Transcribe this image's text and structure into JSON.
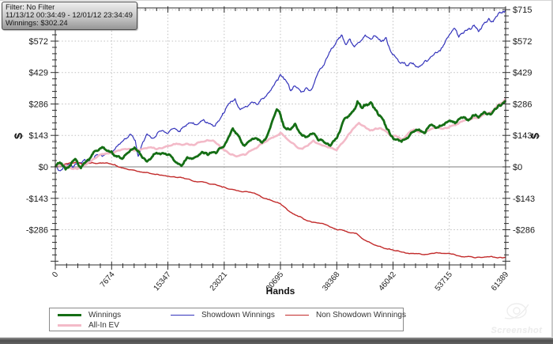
{
  "tooltip": {
    "filter": "Filter: No Filter",
    "date_range": "11/13/12 00:34:49 - 12/01/12 23:34:49",
    "winnings": "Winnings: $302.24"
  },
  "watermark": {
    "text": "Screenshot"
  },
  "chart_data": {
    "type": "line",
    "title": "",
    "xlabel": "Hands",
    "ylabel": "$",
    "xlim": [
      0,
      61389
    ],
    "ylim": [
      -446,
      723
    ],
    "x_ticks": [
      0,
      7674,
      15347,
      23021,
      30695,
      38368,
      46042,
      53715,
      61389
    ],
    "y_ticks": [
      -286,
      -143,
      0,
      143,
      286,
      429,
      572,
      715
    ],
    "grid": "dotted",
    "legend_position": "bottom",
    "series": [
      {
        "name": "Showdown Winnings",
        "color": "#3434bb",
        "width": 1.2,
        "noise": 9,
        "legend_slot": 2,
        "points": [
          [
            0,
            0
          ],
          [
            800,
            -14
          ],
          [
            1600,
            10
          ],
          [
            2400,
            -4
          ],
          [
            3200,
            16
          ],
          [
            4000,
            34
          ],
          [
            4800,
            28
          ],
          [
            5600,
            54
          ],
          [
            6400,
            48
          ],
          [
            7674,
            74
          ],
          [
            8500,
            95
          ],
          [
            9300,
            120
          ],
          [
            10100,
            145
          ],
          [
            10900,
            120
          ],
          [
            11300,
            48
          ],
          [
            11900,
            110
          ],
          [
            12500,
            150
          ],
          [
            13300,
            130
          ],
          [
            14100,
            160
          ],
          [
            15347,
            152
          ],
          [
            16200,
            175
          ],
          [
            17000,
            160
          ],
          [
            17800,
            185
          ],
          [
            18600,
            200
          ],
          [
            19400,
            194
          ],
          [
            20200,
            215
          ],
          [
            21000,
            196
          ],
          [
            21800,
            186
          ],
          [
            22600,
            226
          ],
          [
            23021,
            246
          ],
          [
            23800,
            290
          ],
          [
            24500,
            310
          ],
          [
            25200,
            260
          ],
          [
            26000,
            275
          ],
          [
            26800,
            295
          ],
          [
            27600,
            284
          ],
          [
            28400,
            310
          ],
          [
            29200,
            340
          ],
          [
            30000,
            386
          ],
          [
            30695,
            420
          ],
          [
            31400,
            394
          ],
          [
            32100,
            346
          ],
          [
            32800,
            364
          ],
          [
            33500,
            340
          ],
          [
            34200,
            360
          ],
          [
            34900,
            350
          ],
          [
            35600,
            410
          ],
          [
            36300,
            450
          ],
          [
            37000,
            494
          ],
          [
            37700,
            540
          ],
          [
            38368,
            574
          ],
          [
            39000,
            600
          ],
          [
            39600,
            556
          ],
          [
            40200,
            580
          ],
          [
            40800,
            546
          ],
          [
            41500,
            566
          ],
          [
            42250,
            600
          ],
          [
            43000,
            580
          ],
          [
            43700,
            594
          ],
          [
            44400,
            570
          ],
          [
            45100,
            588
          ],
          [
            45800,
            520
          ],
          [
            46500,
            494
          ],
          [
            47200,
            474
          ],
          [
            47900,
            460
          ],
          [
            48600,
            470
          ],
          [
            49300,
            455
          ],
          [
            50000,
            464
          ],
          [
            50700,
            480
          ],
          [
            51400,
            504
          ],
          [
            52100,
            520
          ],
          [
            52800,
            544
          ],
          [
            53715,
            600
          ],
          [
            54400,
            630
          ],
          [
            55000,
            590
          ],
          [
            55700,
            610
          ],
          [
            56400,
            630
          ],
          [
            57100,
            645
          ],
          [
            57700,
            615
          ],
          [
            58400,
            650
          ],
          [
            59100,
            675
          ],
          [
            59700,
            660
          ],
          [
            60300,
            690
          ],
          [
            60900,
            700
          ],
          [
            61389,
            715
          ]
        ]
      },
      {
        "name": "Non Showdown Winnings",
        "color": "#c22b2b",
        "width": 1.4,
        "noise": 4,
        "legend_slot": 3,
        "points": [
          [
            0,
            0
          ],
          [
            1000,
            8
          ],
          [
            2000,
            18
          ],
          [
            3000,
            22
          ],
          [
            4000,
            14
          ],
          [
            5000,
            20
          ],
          [
            6500,
            18
          ],
          [
            7674,
            12
          ],
          [
            8500,
            2
          ],
          [
            9500,
            -8
          ],
          [
            11000,
            -18
          ],
          [
            12500,
            -25
          ],
          [
            14000,
            -34
          ],
          [
            15347,
            -42
          ],
          [
            16500,
            -48
          ],
          [
            18000,
            -55
          ],
          [
            19500,
            -68
          ],
          [
            21000,
            -78
          ],
          [
            22500,
            -88
          ],
          [
            23021,
            -92
          ],
          [
            24500,
            -105
          ],
          [
            26000,
            -112
          ],
          [
            27500,
            -125
          ],
          [
            29000,
            -148
          ],
          [
            30695,
            -168
          ],
          [
            32000,
            -205
          ],
          [
            33500,
            -228
          ],
          [
            35000,
            -252
          ],
          [
            36500,
            -258
          ],
          [
            38368,
            -286
          ],
          [
            39500,
            -292
          ],
          [
            41000,
            -302
          ],
          [
            42000,
            -330
          ],
          [
            43500,
            -355
          ],
          [
            45000,
            -372
          ],
          [
            46042,
            -378
          ],
          [
            47500,
            -388
          ],
          [
            49000,
            -395
          ],
          [
            50500,
            -398
          ],
          [
            52000,
            -390
          ],
          [
            53715,
            -393
          ],
          [
            55000,
            -405
          ],
          [
            56500,
            -408
          ],
          [
            58000,
            -412
          ],
          [
            59500,
            -407
          ],
          [
            60500,
            -412
          ],
          [
            61389,
            -410
          ]
        ]
      },
      {
        "name": "All-In EV",
        "color": "#f3bac8",
        "width": 2.6,
        "noise": 7,
        "legend_slot": 4,
        "points": [
          [
            0,
            0
          ],
          [
            1500,
            6
          ],
          [
            3000,
            -10
          ],
          [
            4500,
            20
          ],
          [
            6000,
            54
          ],
          [
            7674,
            64
          ],
          [
            9200,
            80
          ],
          [
            10700,
            74
          ],
          [
            12300,
            85
          ],
          [
            13800,
            80
          ],
          [
            15347,
            94
          ],
          [
            16900,
            104
          ],
          [
            18400,
            100
          ],
          [
            19900,
            114
          ],
          [
            21500,
            120
          ],
          [
            23021,
            76
          ],
          [
            24500,
            50
          ],
          [
            26000,
            56
          ],
          [
            27600,
            90
          ],
          [
            29100,
            125
          ],
          [
            30695,
            155
          ],
          [
            32200,
            110
          ],
          [
            33700,
            82
          ],
          [
            35200,
            120
          ],
          [
            36800,
            95
          ],
          [
            38368,
            76
          ],
          [
            39900,
            145
          ],
          [
            41400,
            200
          ],
          [
            42900,
            165
          ],
          [
            44400,
            175
          ],
          [
            45900,
            140
          ],
          [
            47400,
            126
          ],
          [
            48900,
            170
          ],
          [
            50400,
            155
          ],
          [
            51900,
            180
          ],
          [
            53400,
            176
          ],
          [
            54900,
            195
          ],
          [
            56400,
            215
          ],
          [
            57900,
            225
          ],
          [
            59400,
            250
          ],
          [
            60800,
            290
          ],
          [
            61389,
            310
          ]
        ]
      },
      {
        "name": "Winnings",
        "color": "#156e15",
        "width": 2.8,
        "noise": 9,
        "legend_slot": 1,
        "points": [
          [
            0,
            0
          ],
          [
            700,
            18
          ],
          [
            1400,
            -12
          ],
          [
            2100,
            8
          ],
          [
            2800,
            34
          ],
          [
            3500,
            -6
          ],
          [
            4200,
            24
          ],
          [
            5000,
            55
          ],
          [
            5800,
            74
          ],
          [
            6600,
            88
          ],
          [
            7674,
            70
          ],
          [
            8400,
            46
          ],
          [
            9200,
            38
          ],
          [
            10000,
            66
          ],
          [
            10800,
            88
          ],
          [
            11600,
            58
          ],
          [
            12400,
            26
          ],
          [
            13200,
            46
          ],
          [
            14000,
            60
          ],
          [
            15347,
            54
          ],
          [
            16200,
            28
          ],
          [
            17200,
            4
          ],
          [
            18000,
            44
          ],
          [
            18800,
            38
          ],
          [
            20000,
            68
          ],
          [
            20800,
            54
          ],
          [
            21900,
            62
          ],
          [
            23021,
            95
          ],
          [
            24200,
            175
          ],
          [
            25000,
            140
          ],
          [
            25800,
            96
          ],
          [
            26600,
            120
          ],
          [
            27400,
            130
          ],
          [
            28200,
            110
          ],
          [
            29000,
            152
          ],
          [
            30200,
            262
          ],
          [
            30695,
            238
          ],
          [
            31100,
            188
          ],
          [
            31900,
            170
          ],
          [
            32700,
            196
          ],
          [
            33500,
            150
          ],
          [
            34300,
            136
          ],
          [
            35100,
            152
          ],
          [
            35900,
            120
          ],
          [
            36700,
            110
          ],
          [
            37500,
            96
          ],
          [
            38368,
            130
          ],
          [
            39200,
            204
          ],
          [
            40000,
            230
          ],
          [
            40600,
            254
          ],
          [
            41200,
            298
          ],
          [
            41800,
            268
          ],
          [
            42400,
            284
          ],
          [
            43000,
            294
          ],
          [
            43700,
            258
          ],
          [
            44400,
            228
          ],
          [
            45100,
            180
          ],
          [
            45800,
            140
          ],
          [
            46500,
            124
          ],
          [
            47200,
            114
          ],
          [
            48000,
            130
          ],
          [
            48800,
            160
          ],
          [
            49600,
            170
          ],
          [
            50400,
            154
          ],
          [
            51200,
            190
          ],
          [
            52000,
            178
          ],
          [
            52800,
            190
          ],
          [
            53715,
            210
          ],
          [
            54500,
            198
          ],
          [
            55300,
            224
          ],
          [
            56100,
            214
          ],
          [
            56900,
            234
          ],
          [
            57700,
            224
          ],
          [
            58500,
            250
          ],
          [
            59300,
            238
          ],
          [
            60100,
            264
          ],
          [
            60800,
            280
          ],
          [
            61389,
            302
          ]
        ]
      }
    ]
  }
}
